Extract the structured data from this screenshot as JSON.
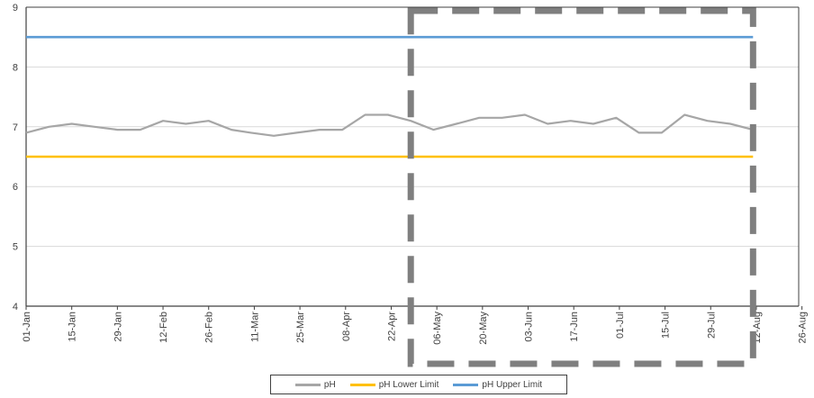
{
  "chart_data": {
    "type": "line",
    "title": "",
    "xlabel": "",
    "ylabel": "",
    "ylim": [
      4,
      9
    ],
    "yticks": [
      4,
      5,
      6,
      7,
      8,
      9
    ],
    "xlim": [
      "2019-01-01",
      "2019-08-26"
    ],
    "xtick_labels": [
      "01-Jan",
      "15-Jan",
      "29-Jan",
      "12-Feb",
      "26-Feb",
      "11-Mar",
      "25-Mar",
      "08-Apr",
      "22-Apr",
      "06-May",
      "20-May",
      "03-Jun",
      "17-Jun",
      "01-Jul",
      "15-Jul",
      "29-Jul",
      "12-Aug",
      "26-Aug"
    ],
    "grid": true,
    "legend_position": "bottom",
    "series": [
      {
        "name": "pH",
        "color": "#a6a6a6",
        "x": [
          "2019-01-01",
          "2019-01-08",
          "2019-01-15",
          "2019-01-22",
          "2019-01-29",
          "2019-02-05",
          "2019-02-12",
          "2019-02-19",
          "2019-02-26",
          "2019-03-05",
          "2019-03-11",
          "2019-03-18",
          "2019-03-25",
          "2019-04-01",
          "2019-04-08",
          "2019-04-15",
          "2019-04-22",
          "2019-04-29",
          "2019-05-06",
          "2019-05-13",
          "2019-05-20",
          "2019-05-27",
          "2019-06-03",
          "2019-06-10",
          "2019-06-17",
          "2019-06-24",
          "2019-07-01",
          "2019-07-08",
          "2019-07-15",
          "2019-07-22",
          "2019-07-29",
          "2019-08-05",
          "2019-08-12"
        ],
        "values": [
          6.9,
          7.0,
          7.05,
          7.0,
          6.95,
          6.95,
          7.1,
          7.05,
          7.1,
          6.95,
          6.9,
          6.85,
          6.9,
          6.95,
          6.95,
          7.2,
          7.2,
          7.1,
          6.95,
          7.05,
          7.15,
          7.15,
          7.2,
          7.05,
          7.1,
          7.05,
          7.15,
          6.9,
          6.9,
          7.2,
          7.1,
          7.05,
          6.95
        ]
      },
      {
        "name": "pH Lower Limit",
        "color": "#ffc000",
        "x": [
          "2019-01-01",
          "2019-08-12"
        ],
        "values": [
          6.5,
          6.5
        ]
      },
      {
        "name": "pH Upper Limit",
        "color": "#5b9bd5",
        "x": [
          "2019-01-01",
          "2019-08-12"
        ],
        "values": [
          8.5,
          8.5
        ]
      }
    ],
    "annotations": [
      {
        "type": "dashed-rectangle",
        "x_start": "2019-04-29",
        "x_end": "2019-08-12",
        "y_low": 4,
        "y_high": 9,
        "color": "#7f7f7f"
      }
    ]
  }
}
